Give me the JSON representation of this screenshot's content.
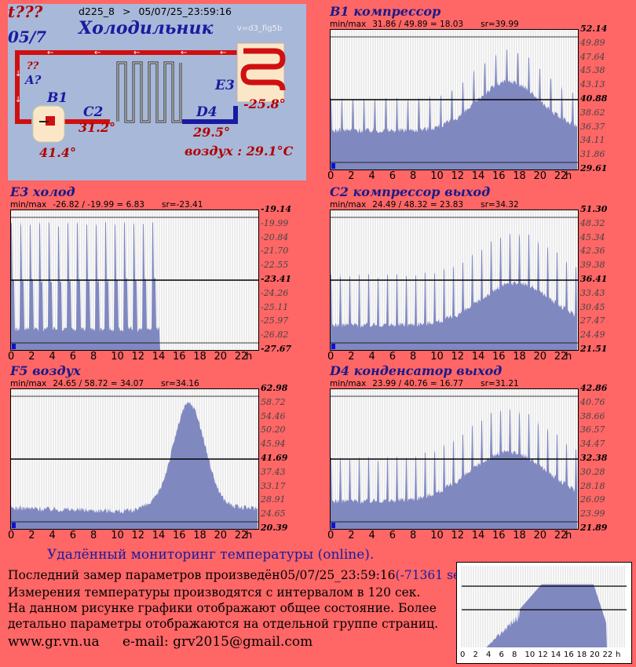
{
  "header": {
    "flag": "t???",
    "date_short": "05/7",
    "device": "d225_8",
    "arrow": ">",
    "timestamp": "05/07/25_23:59:16",
    "title": "Холодильник",
    "version": "v=d3_fig5b"
  },
  "diagram": {
    "unknown1": "??",
    "a_label": "A?",
    "b1_label": "B1",
    "b1_value": "41.4°",
    "c2_label": "C2",
    "c2_value": "31.2°",
    "d4_label": "D4",
    "d4_value": "29.5°",
    "e3_label": "E3",
    "e3_value": "-25.8°",
    "air": "воздух : 29.1°C"
  },
  "colors": {
    "background": "#ff6666",
    "panel": "#a8b8d8",
    "fill": "#8088c0",
    "accent_blue": "#1a1aa0",
    "pipe_red": "#d01010"
  },
  "charts": {
    "b1": {
      "title": "B1 компрессор",
      "minmax": "min/max",
      "range": "31.86 / 49.89 = 18.03",
      "sr": "sr=39.99",
      "ylabels": [
        "52.14",
        "49.89",
        "47.64",
        "45.38",
        "43.13",
        "40.88",
        "38.62",
        "36.37",
        "34.11",
        "31.86",
        "29.61"
      ]
    },
    "e3": {
      "title": "E3 холод",
      "minmax": "min/max",
      "range": "-26.82 / -19.99 = 6.83",
      "sr": "sr=-23.41",
      "ylabels": [
        "-19.14",
        "-19.99",
        "-20.84",
        "-21.70",
        "-22.55",
        "-23.41",
        "-24.26",
        "-25.11",
        "-25.97",
        "-26.82",
        "-27.67"
      ]
    },
    "c2": {
      "title": "C2 компрессор выход",
      "minmax": "min/max",
      "range": "24.49 / 48.32 = 23.83",
      "sr": "sr=34.32",
      "ylabels": [
        "51.30",
        "48.32",
        "45.34",
        "42.36",
        "39.38",
        "36.41",
        "33.43",
        "30.45",
        "27.47",
        "24.49",
        "21.51"
      ]
    },
    "f5": {
      "title": "F5 воздух",
      "minmax": "min/max",
      "range": "24.65 / 58.72 = 34.07",
      "sr": "sr=34.16",
      "ylabels": [
        "62.98",
        "58.72",
        "54.46",
        "50.20",
        "45.94",
        "41.69",
        "37.43",
        "33.17",
        "28.91",
        "24.65",
        "20.39"
      ]
    },
    "d4": {
      "title": "D4 конденсатор выход",
      "minmax": "min/max",
      "range": "23.99 / 40.76 = 16.77",
      "sr": "sr=31.21",
      "ylabels": [
        "42.86",
        "40.76",
        "38.66",
        "36.57",
        "34.47",
        "32.38",
        "30.28",
        "28.18",
        "26.09",
        "23.99",
        "21.89"
      ]
    },
    "xlabels": [
      "0",
      "2",
      "4",
      "6",
      "8",
      "10",
      "12",
      "14",
      "16",
      "18",
      "20",
      "22",
      "h"
    ]
  },
  "mini_chart": {
    "xlabels": [
      "0",
      "2",
      "4",
      "6",
      "8",
      "10",
      "12",
      "14",
      "16",
      "18",
      "20",
      "22",
      "h"
    ]
  },
  "footer": {
    "heading": "Удалённый мониторинг температуры (online).",
    "line1_prefix": "Последний замер параметров произведён",
    "line1_time": "05/07/25_23:59:16",
    "line1_delta": "(-71361 sec).",
    "line2": "Измерения температуры  производятся с интервалом в 120 сек.",
    "line3": "На данном рисунке графики отображают общее состояние. Более",
    "line4": "детально параметры отображаются на отдельной группе страниц.",
    "site": "www.gr.vn.ua",
    "email": "e-mail: grv2015@gmail.com"
  }
}
